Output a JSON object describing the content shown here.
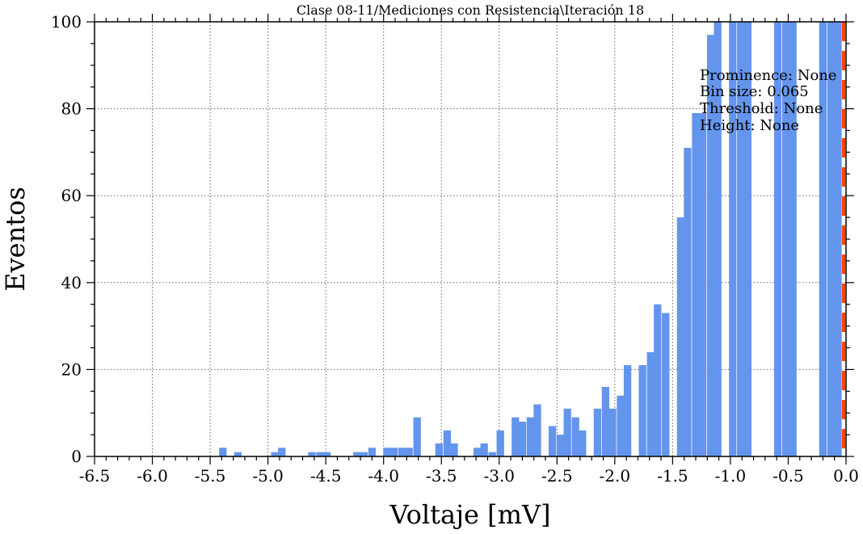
{
  "chart_data": {
    "type": "bar",
    "title": "Clase 08-11/Mediciones con Resistencia\\Iteración 18",
    "xlabel": "Voltaje [mV]",
    "ylabel": "Eventos",
    "xlim": [
      -6.5,
      0.0
    ],
    "ylim": [
      0,
      100
    ],
    "x_ticks": [
      "-6.5",
      "-6.0",
      "-5.5",
      "-5.0",
      "-4.5",
      "-4.0",
      "-3.5",
      "-3.0",
      "-2.5",
      "-2.0",
      "-1.5",
      "-1.0",
      "-0.5",
      "0.0"
    ],
    "y_ticks": [
      "0",
      "20",
      "40",
      "60",
      "80",
      "100"
    ],
    "grid": true,
    "bin_size": 0.065,
    "bar_color": "#6495ED",
    "threshold_line": {
      "x": 0.0,
      "color": "#FF4500",
      "style": "dashed"
    },
    "bins": [
      {
        "x": -5.39,
        "y": 2
      },
      {
        "x": -5.26,
        "y": 1
      },
      {
        "x": -4.94,
        "y": 1
      },
      {
        "x": -4.88,
        "y": 2
      },
      {
        "x": -4.62,
        "y": 1
      },
      {
        "x": -4.55,
        "y": 1
      },
      {
        "x": -4.49,
        "y": 1
      },
      {
        "x": -4.23,
        "y": 1
      },
      {
        "x": -4.17,
        "y": 1
      },
      {
        "x": -4.1,
        "y": 2
      },
      {
        "x": -3.97,
        "y": 2
      },
      {
        "x": -3.91,
        "y": 2
      },
      {
        "x": -3.84,
        "y": 2
      },
      {
        "x": -3.78,
        "y": 2
      },
      {
        "x": -3.71,
        "y": 9
      },
      {
        "x": -3.52,
        "y": 3
      },
      {
        "x": -3.45,
        "y": 6
      },
      {
        "x": -3.39,
        "y": 3
      },
      {
        "x": -3.19,
        "y": 2
      },
      {
        "x": -3.13,
        "y": 3
      },
      {
        "x": -3.06,
        "y": 1
      },
      {
        "x": -2.99,
        "y": 6
      },
      {
        "x": -2.86,
        "y": 9
      },
      {
        "x": -2.8,
        "y": 8
      },
      {
        "x": -2.73,
        "y": 9
      },
      {
        "x": -2.67,
        "y": 12
      },
      {
        "x": -2.54,
        "y": 7
      },
      {
        "x": -2.47,
        "y": 5
      },
      {
        "x": -2.41,
        "y": 11
      },
      {
        "x": -2.34,
        "y": 9
      },
      {
        "x": -2.28,
        "y": 6
      },
      {
        "x": -2.15,
        "y": 11
      },
      {
        "x": -2.08,
        "y": 16
      },
      {
        "x": -2.02,
        "y": 11
      },
      {
        "x": -1.95,
        "y": 14
      },
      {
        "x": -1.89,
        "y": 21
      },
      {
        "x": -1.76,
        "y": 21
      },
      {
        "x": -1.69,
        "y": 24
      },
      {
        "x": -1.63,
        "y": 35
      },
      {
        "x": -1.56,
        "y": 33
      },
      {
        "x": -1.43,
        "y": 55
      },
      {
        "x": -1.37,
        "y": 71
      },
      {
        "x": -1.3,
        "y": 79
      },
      {
        "x": -1.24,
        "y": 79
      },
      {
        "x": -1.17,
        "y": 97
      },
      {
        "x": -1.11,
        "y": 100
      },
      {
        "x": -0.98,
        "y": 100
      },
      {
        "x": -0.91,
        "y": 100
      },
      {
        "x": -0.85,
        "y": 100
      },
      {
        "x": -0.59,
        "y": 100
      },
      {
        "x": -0.52,
        "y": 100
      },
      {
        "x": -0.46,
        "y": 100
      },
      {
        "x": -0.2,
        "y": 100
      },
      {
        "x": -0.13,
        "y": 100
      },
      {
        "x": -0.07,
        "y": 100
      }
    ],
    "annotations": [
      "Prominence: None",
      "Bin size: 0.065",
      "Threshold: None",
      "Height: None"
    ]
  }
}
